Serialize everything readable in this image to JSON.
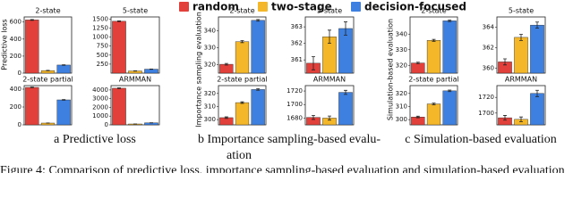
{
  "legend": [
    {
      "name": "random",
      "color": "#e2403a"
    },
    {
      "name": "two-stage",
      "color": "#f4b72a"
    },
    {
      "name": "decision-focused",
      "color": "#3e80e0"
    }
  ],
  "panels": [
    {
      "ylabel": "Predictive loss",
      "caption": [
        "a Predictive loss"
      ]
    },
    {
      "ylabel": "Importance sampling evaluation",
      "caption": [
        "b Importance sampling-based evalu-",
        "ation"
      ]
    },
    {
      "ylabel": "Simulation-based evaluation",
      "caption": [
        "c Simulation-based evaluation"
      ]
    }
  ],
  "figure_caption": "Figure 4: Comparison of predictive loss, importance sampling-based evaluation and simulation-based evaluation",
  "chart_data": [
    {
      "type": "bar",
      "title": "2-state",
      "values": [
        625,
        30,
        95
      ],
      "errors": [
        5,
        2,
        3
      ],
      "ylim": [
        0,
        660
      ],
      "yticks": [
        0,
        200,
        400,
        600
      ]
    },
    {
      "type": "bar",
      "title": "5-state",
      "values": [
        1440,
        60,
        110
      ],
      "errors": [
        10,
        3,
        4
      ],
      "ylim": [
        0,
        1560
      ],
      "yticks": [
        250,
        500,
        750,
        1000,
        1250,
        1500
      ]
    },
    {
      "type": "bar",
      "title": "2-state partial",
      "values": [
        420,
        20,
        280
      ],
      "errors": [
        4,
        1,
        4
      ],
      "ylim": [
        0,
        440
      ],
      "yticks": [
        0,
        200,
        400
      ]
    },
    {
      "type": "bar",
      "title": "ARMMAN",
      "values": [
        4200,
        100,
        230
      ],
      "errors": [
        40,
        5,
        10
      ],
      "ylim": [
        0,
        4500
      ],
      "yticks": [
        0,
        1000,
        2000,
        3000,
        4000
      ]
    },
    {
      "type": "bar",
      "title": "2-state",
      "values": [
        320.2,
        333.5,
        346
      ],
      "errors": [
        0.5,
        0.6,
        0.5
      ],
      "ylim": [
        315,
        348
      ],
      "yticks": [
        320,
        330,
        340
      ]
    },
    {
      "type": "bar",
      "title": "5-state",
      "values": [
        360.8,
        362.4,
        362.9
      ],
      "errors": [
        0.4,
        0.4,
        0.4
      ],
      "ylim": [
        360.2,
        363.6
      ],
      "yticks": [
        361,
        362,
        363
      ]
    },
    {
      "type": "bar",
      "title": "2-state partial",
      "values": [
        301.5,
        313,
        323
      ],
      "errors": [
        0.6,
        0.6,
        0.6
      ],
      "ylim": [
        296,
        326
      ],
      "yticks": [
        300,
        310,
        320
      ]
    },
    {
      "type": "bar",
      "title": "ARMMAN",
      "values": [
        1681,
        1680,
        1718
      ],
      "errors": [
        3,
        3,
        3
      ],
      "ylim": [
        1670,
        1728
      ],
      "yticks": [
        1680,
        1700,
        1720
      ]
    },
    {
      "type": "bar",
      "title": "2-state",
      "values": [
        321.5,
        336,
        348.5
      ],
      "errors": [
        0.5,
        0.6,
        0.5
      ],
      "ylim": [
        315,
        351
      ],
      "yticks": [
        320,
        330,
        340
      ]
    },
    {
      "type": "bar",
      "title": "5-state",
      "values": [
        360.6,
        363,
        364.2
      ],
      "errors": [
        0.3,
        0.3,
        0.3
      ],
      "ylim": [
        359.5,
        365
      ],
      "yticks": [
        360,
        362,
        364
      ]
    },
    {
      "type": "bar",
      "title": "2-state partial",
      "values": [
        302,
        312,
        322
      ],
      "errors": [
        0.6,
        0.6,
        0.6
      ],
      "ylim": [
        296,
        326
      ],
      "yticks": [
        300,
        310,
        320
      ]
    },
    {
      "type": "bar",
      "title": "ARMMAN",
      "values": [
        1694,
        1692,
        1725
      ],
      "errors": [
        3,
        3,
        4
      ],
      "ylim": [
        1685,
        1735
      ],
      "yticks": [
        1700,
        1720
      ]
    }
  ]
}
